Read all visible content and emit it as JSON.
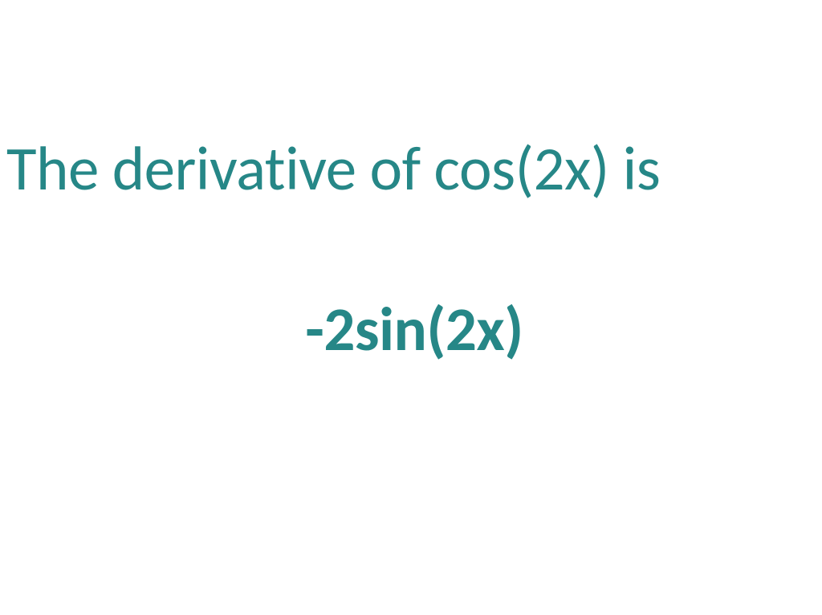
{
  "slide": {
    "line1_text": "The derivative of cos(2x) is",
    "line2_text": "-2sin(2x)",
    "text_color": "#268787",
    "background_color": "#ffffff",
    "line1_fontsize": 77,
    "line1_fontweight": 400,
    "line2_fontsize": 77,
    "line2_fontweight": 700,
    "font_family": "Calibri"
  }
}
